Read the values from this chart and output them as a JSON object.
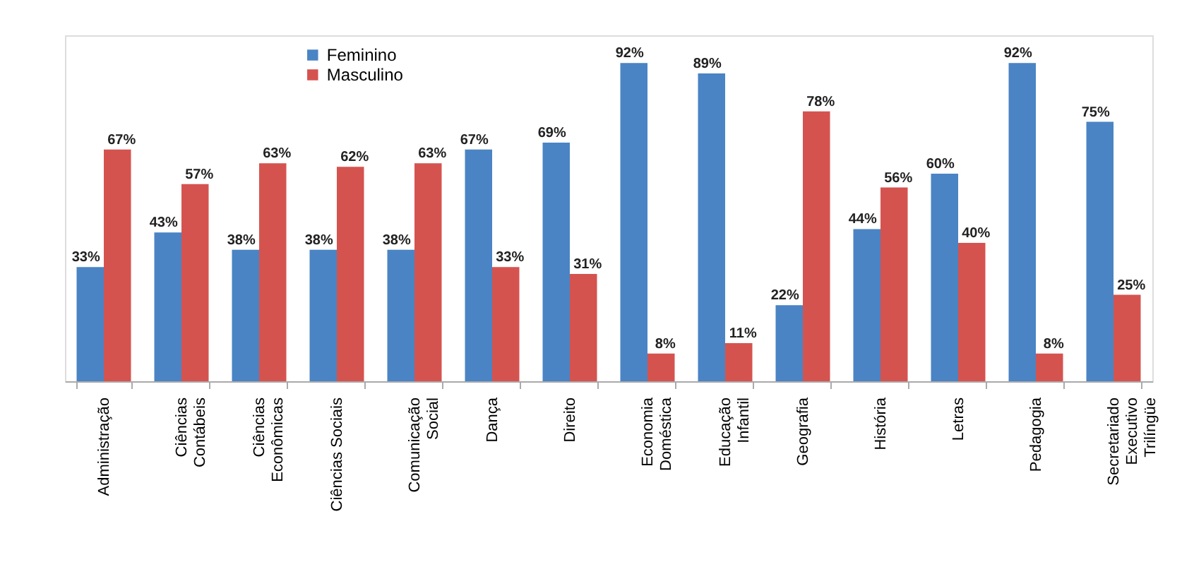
{
  "chart_data": {
    "type": "bar",
    "categories": [
      "Administração",
      "Ciências Contábeis",
      "Ciências Econômicas",
      "Ciências Sociais",
      "Comunicação Social",
      "Dança",
      "Direito",
      "Economia Doméstica",
      "Educação Infantil",
      "Geografia",
      "História",
      "Letras",
      "Pedagogia",
      "Secretariado Executivo Trilíngüe"
    ],
    "series": [
      {
        "name": "Feminino",
        "color": "#4a84c4",
        "values": [
          33,
          43,
          38,
          38,
          38,
          67,
          69,
          92,
          89,
          22,
          44,
          60,
          92,
          75
        ],
        "value_labels": [
          "33%",
          "43%",
          "38%",
          "38%",
          "38%",
          "67%",
          "69%",
          "92%",
          "89%",
          "22%",
          "44%",
          "60%",
          "92%",
          "75%"
        ]
      },
      {
        "name": "Masculino",
        "color": "#d5534f",
        "values": [
          67,
          57,
          63,
          62,
          63,
          33,
          31,
          8,
          11,
          78,
          56,
          40,
          8,
          25
        ],
        "value_labels": [
          "67%",
          "57%",
          "63%",
          "62%",
          "63%",
          "33%",
          "31%",
          "8%",
          "11%",
          "78%",
          "56%",
          "40%",
          "8%",
          "25%"
        ]
      }
    ],
    "ylim": [
      0,
      100
    ],
    "tick_labels": "x",
    "legend": "top left",
    "grid": false
  }
}
